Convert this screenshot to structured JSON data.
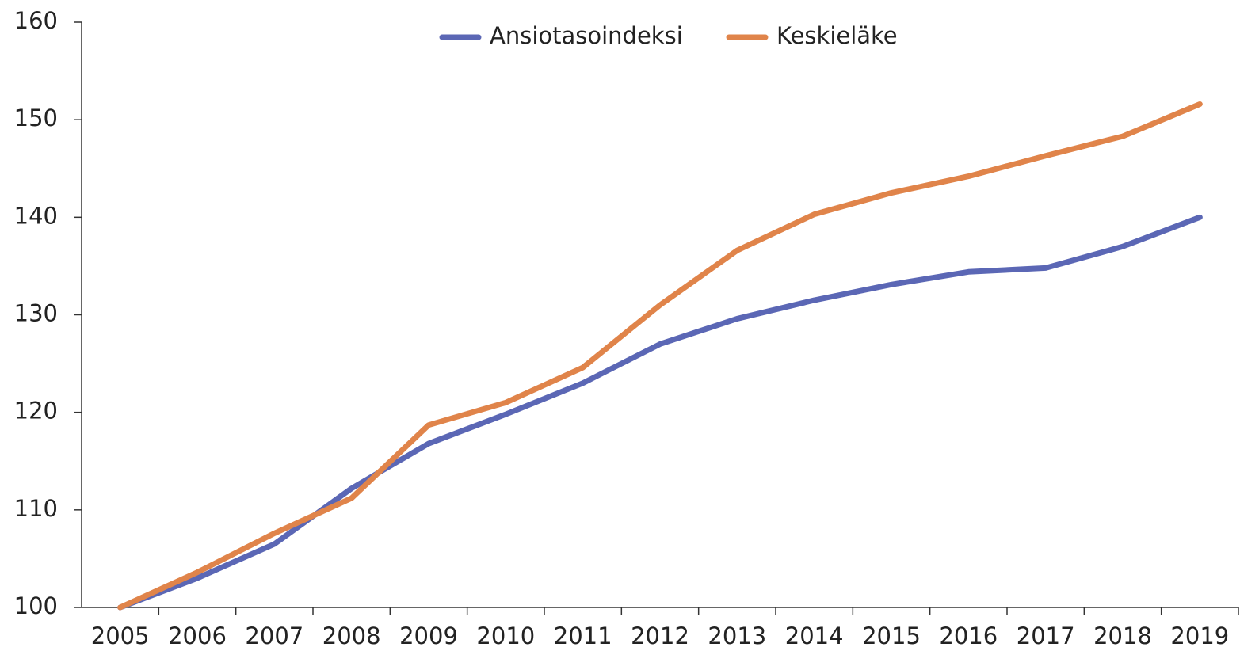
{
  "chart_data": {
    "type": "line",
    "categories": [
      "2005",
      "2006",
      "2007",
      "2008",
      "2009",
      "2010",
      "2011",
      "2012",
      "2013",
      "2014",
      "2015",
      "2016",
      "2017",
      "2018",
      "2019"
    ],
    "series": [
      {
        "name": "Ansiotasoindeksi",
        "color": "#5b67b5",
        "values": [
          100,
          103,
          106.5,
          112.2,
          116.8,
          119.8,
          123,
          127,
          129.6,
          131.5,
          133.1,
          134.4,
          134.8,
          137,
          140
        ]
      },
      {
        "name": "Keskieläke",
        "color": "#e0844a",
        "values": [
          100,
          103.6,
          107.6,
          111.2,
          118.7,
          121,
          124.6,
          131,
          136.6,
          140.3,
          142.5,
          144.2,
          146.3,
          148.3,
          151.6
        ]
      }
    ],
    "ylim": [
      100,
      160
    ],
    "yticks": [
      100,
      110,
      120,
      130,
      140,
      150,
      160
    ],
    "grid": false,
    "legend": "top"
  }
}
